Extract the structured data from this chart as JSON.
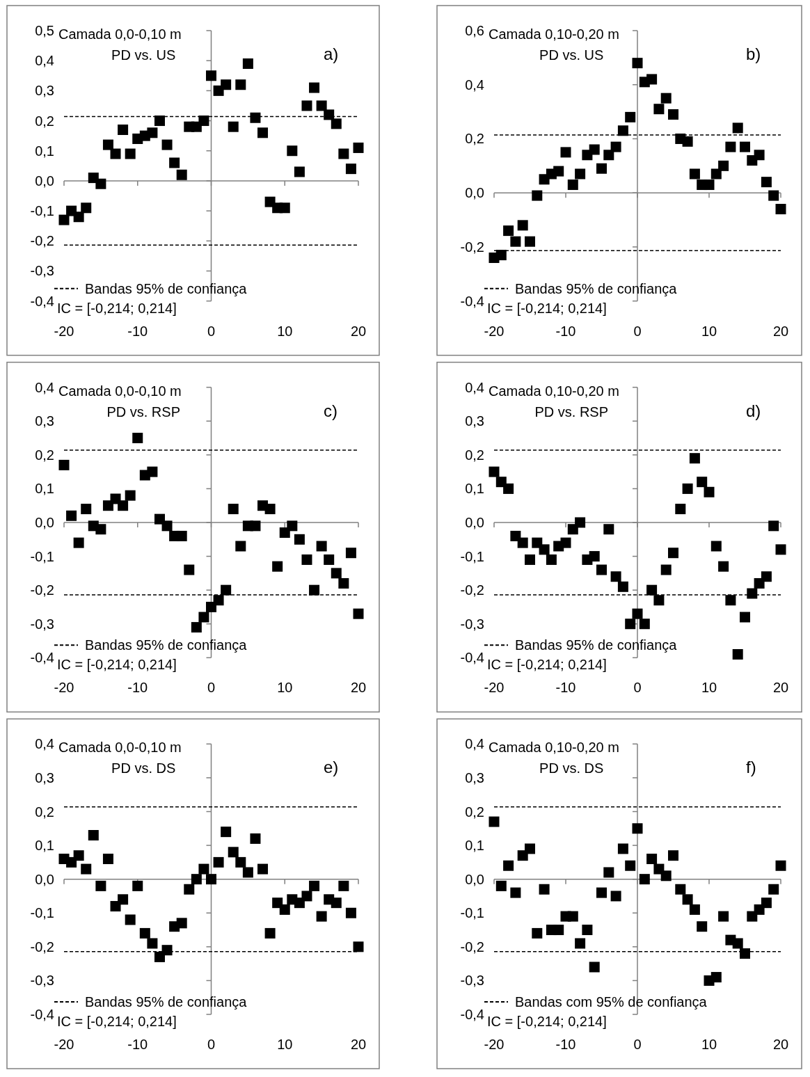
{
  "chart_data": [
    {
      "type": "scatter",
      "title": "Camada 0,0-0,10 m",
      "subtitle": "PD vs. US",
      "annotations": [
        "a)",
        "IC = [-0,214; 0,214]"
      ],
      "marker": "square",
      "xlim": [
        -20,
        20
      ],
      "xticks": [
        -20,
        -10,
        0,
        10,
        20
      ],
      "ylim": [
        -0.4,
        0.5
      ],
      "yticks": [
        {
          "value": -0.4,
          "label": "-0,4"
        },
        {
          "value": -0.3,
          "label": "-0,3"
        },
        {
          "value": -0.2,
          "label": "-0,2"
        },
        {
          "value": -0.1,
          "label": "-0,1"
        },
        {
          "value": 0,
          "label": "0,0"
        },
        {
          "value": 0.1,
          "label": "0,1"
        },
        {
          "value": 0.2,
          "label": "0,2"
        },
        {
          "value": 0.3,
          "label": "0,3"
        },
        {
          "value": 0.4,
          "label": "0,4"
        },
        {
          "value": 0.5,
          "label": "0,5"
        }
      ],
      "ref_lines": [
        {
          "axis": "y",
          "value": 0.214,
          "label": "Bandas  95% de confiança",
          "color": "#000000",
          "line_style": "dashed"
        },
        {
          "axis": "y",
          "value": -0.214,
          "label": null,
          "color": "#000000",
          "line_style": "dashed"
        }
      ],
      "x": [
        -20,
        -19,
        -18,
        -17,
        -16,
        -15,
        -14,
        -13,
        -12,
        -11,
        -10,
        -9,
        -8,
        -7,
        -6,
        -5,
        -4,
        -3,
        -2,
        -1,
        0,
        1,
        2,
        3,
        4,
        5,
        6,
        7,
        8,
        9,
        10,
        11,
        12,
        13,
        14,
        15,
        16,
        17,
        18,
        19,
        20
      ],
      "series": [
        {
          "color": "#000000",
          "values": [
            -0.13,
            -0.1,
            -0.12,
            -0.09,
            0.01,
            -0.01,
            0.12,
            0.09,
            0.17,
            0.09,
            0.14,
            0.15,
            0.16,
            0.2,
            0.12,
            0.06,
            0.02,
            0.18,
            0.18,
            0.2,
            0.35,
            0.3,
            0.32,
            0.18,
            0.32,
            0.39,
            0.21,
            0.16,
            -0.07,
            -0.09,
            -0.09,
            0.1,
            0.03,
            0.25,
            0.31,
            0.25,
            0.22,
            0.19,
            0.09,
            0.04,
            0.11
          ]
        }
      ]
    },
    {
      "type": "scatter",
      "title": "Camada 0,10-0,20 m",
      "subtitle": "PD vs. US",
      "annotations": [
        "b)",
        "IC = [-0,214; 0,214]"
      ],
      "marker": "square",
      "xlim": [
        -20,
        20
      ],
      "xticks": [
        -20,
        -10,
        0,
        10,
        20
      ],
      "ylim": [
        -0.4,
        0.6
      ],
      "yticks": [
        {
          "value": -0.4,
          "label": "-0,4"
        },
        {
          "value": -0.2,
          "label": "-0,2"
        },
        {
          "value": 0,
          "label": "0,0"
        },
        {
          "value": 0.2,
          "label": "0,2"
        },
        {
          "value": 0.4,
          "label": "0,4"
        },
        {
          "value": 0.6,
          "label": "0,6"
        }
      ],
      "ref_lines": [
        {
          "axis": "y",
          "value": 0.214,
          "label": "Bandas 95% de confiança",
          "color": "#000000",
          "line_style": "dashed"
        },
        {
          "axis": "y",
          "value": -0.214,
          "label": null,
          "color": "#000000",
          "line_style": "dashed"
        }
      ],
      "x": [
        -20,
        -19,
        -18,
        -17,
        -16,
        -15,
        -14,
        -13,
        -12,
        -11,
        -10,
        -9,
        -8,
        -7,
        -6,
        -5,
        -4,
        -3,
        -2,
        -1,
        0,
        1,
        2,
        3,
        4,
        5,
        6,
        7,
        8,
        9,
        10,
        11,
        12,
        13,
        14,
        15,
        16,
        17,
        18,
        19,
        20
      ],
      "series": [
        {
          "color": "#000000",
          "values": [
            -0.24,
            -0.23,
            -0.14,
            -0.18,
            -0.12,
            -0.18,
            -0.01,
            0.05,
            0.07,
            0.08,
            0.15,
            0.03,
            0.07,
            0.14,
            0.16,
            0.09,
            0.14,
            0.17,
            0.23,
            0.28,
            0.48,
            0.41,
            0.42,
            0.31,
            0.35,
            0.29,
            0.2,
            0.19,
            0.07,
            0.03,
            0.03,
            0.07,
            0.1,
            0.17,
            0.24,
            0.17,
            0.12,
            0.14,
            0.04,
            -0.01,
            -0.06
          ]
        }
      ]
    },
    {
      "type": "scatter",
      "title": "Camada 0,0-0,10 m",
      "subtitle": "PD vs. RSP",
      "annotations": [
        "c)",
        "IC = [-0,214; 0,214]"
      ],
      "marker": "square",
      "xlim": [
        -20,
        20
      ],
      "xticks": [
        -20,
        -10,
        0,
        10,
        20
      ],
      "ylim": [
        -0.4,
        0.4
      ],
      "yticks": [
        {
          "value": -0.4,
          "label": "-0,4"
        },
        {
          "value": -0.3,
          "label": "-0,3"
        },
        {
          "value": -0.2,
          "label": "-0,2"
        },
        {
          "value": -0.1,
          "label": "-0,1"
        },
        {
          "value": 0,
          "label": "0,0"
        },
        {
          "value": 0.1,
          "label": "0,1"
        },
        {
          "value": 0.2,
          "label": "0,2"
        },
        {
          "value": 0.3,
          "label": "0,3"
        },
        {
          "value": 0.4,
          "label": "0,4"
        }
      ],
      "ref_lines": [
        {
          "axis": "y",
          "value": 0.214,
          "label": "Bandas  95% de confiança",
          "color": "#000000",
          "line_style": "dashed"
        },
        {
          "axis": "y",
          "value": -0.214,
          "label": null,
          "color": "#000000",
          "line_style": "dashed"
        }
      ],
      "x": [
        -20,
        -19,
        -18,
        -17,
        -16,
        -15,
        -14,
        -13,
        -12,
        -11,
        -10,
        -9,
        -8,
        -7,
        -6,
        -5,
        -4,
        -3,
        -2,
        -1,
        0,
        1,
        2,
        3,
        4,
        5,
        6,
        7,
        8,
        9,
        10,
        11,
        12,
        13,
        14,
        15,
        16,
        17,
        18,
        19,
        20
      ],
      "series": [
        {
          "color": "#000000",
          "values": [
            0.17,
            0.02,
            -0.06,
            0.04,
            -0.01,
            -0.02,
            0.05,
            0.07,
            0.05,
            0.08,
            0.25,
            0.14,
            0.15,
            0.01,
            -0.01,
            -0.04,
            -0.04,
            -0.14,
            -0.31,
            -0.28,
            -0.25,
            -0.23,
            -0.2,
            0.04,
            -0.07,
            -0.01,
            -0.01,
            0.05,
            0.04,
            -0.13,
            -0.03,
            -0.01,
            -0.05,
            -0.11,
            -0.2,
            -0.07,
            -0.11,
            -0.15,
            -0.18,
            -0.09,
            -0.27
          ]
        }
      ]
    },
    {
      "type": "scatter",
      "title": "Camada 0,10-0,20 m",
      "subtitle": "PD vs. RSP",
      "annotations": [
        "d)",
        "IC = [-0,214; 0,214]"
      ],
      "marker": "square",
      "xlim": [
        -20,
        20
      ],
      "xticks": [
        -20,
        -10,
        0,
        10,
        20
      ],
      "ylim": [
        -0.4,
        0.4
      ],
      "yticks": [
        {
          "value": -0.4,
          "label": "-0,4"
        },
        {
          "value": -0.3,
          "label": "-0,3"
        },
        {
          "value": -0.2,
          "label": "-0,2"
        },
        {
          "value": -0.1,
          "label": "-0,1"
        },
        {
          "value": 0,
          "label": "0,0"
        },
        {
          "value": 0.1,
          "label": "0,1"
        },
        {
          "value": 0.2,
          "label": "0,2"
        },
        {
          "value": 0.3,
          "label": "0,3"
        },
        {
          "value": 0.4,
          "label": "0,4"
        }
      ],
      "ref_lines": [
        {
          "axis": "y",
          "value": 0.214,
          "label": "Bandas 95% de confiança",
          "color": "#000000",
          "line_style": "dashed"
        },
        {
          "axis": "y",
          "value": -0.214,
          "label": null,
          "color": "#000000",
          "line_style": "dashed"
        }
      ],
      "x": [
        -20,
        -19,
        -18,
        -17,
        -16,
        -15,
        -14,
        -13,
        -12,
        -11,
        -10,
        -9,
        -8,
        -7,
        -6,
        -5,
        -4,
        -3,
        -2,
        -1,
        0,
        1,
        2,
        3,
        4,
        5,
        6,
        7,
        8,
        9,
        10,
        11,
        12,
        13,
        14,
        15,
        16,
        17,
        18,
        19,
        20
      ],
      "series": [
        {
          "color": "#000000",
          "values": [
            0.15,
            0.12,
            0.1,
            -0.04,
            -0.06,
            -0.11,
            -0.06,
            -0.08,
            -0.11,
            -0.07,
            -0.06,
            -0.02,
            0.0,
            -0.11,
            -0.1,
            -0.14,
            -0.02,
            -0.16,
            -0.19,
            -0.3,
            -0.27,
            -0.3,
            -0.2,
            -0.23,
            -0.14,
            -0.09,
            0.04,
            0.1,
            0.19,
            0.12,
            0.09,
            -0.07,
            -0.13,
            -0.23,
            -0.39,
            -0.28,
            -0.21,
            -0.18,
            -0.16,
            -0.01,
            -0.08
          ]
        }
      ]
    },
    {
      "type": "scatter",
      "title": "Camada 0,0-0,10 m",
      "subtitle": "PD vs. DS",
      "annotations": [
        "e)",
        "IC = [-0,214; 0,214]"
      ],
      "marker": "square",
      "xlim": [
        -20,
        20
      ],
      "xticks": [
        -20,
        -10,
        0,
        10,
        20
      ],
      "ylim": [
        -0.4,
        0.4
      ],
      "yticks": [
        {
          "value": -0.4,
          "label": "-0,4"
        },
        {
          "value": -0.3,
          "label": "-0,3"
        },
        {
          "value": -0.2,
          "label": "-0,2"
        },
        {
          "value": -0.1,
          "label": "-0,1"
        },
        {
          "value": 0,
          "label": "0,0"
        },
        {
          "value": 0.1,
          "label": "0,1"
        },
        {
          "value": 0.2,
          "label": "0,2"
        },
        {
          "value": 0.3,
          "label": "0,3"
        },
        {
          "value": 0.4,
          "label": "0,4"
        }
      ],
      "ref_lines": [
        {
          "axis": "y",
          "value": 0.214,
          "label": "Bandas  95% de confiança",
          "color": "#000000",
          "line_style": "dashed"
        },
        {
          "axis": "y",
          "value": -0.214,
          "label": null,
          "color": "#000000",
          "line_style": "dashed"
        }
      ],
      "x": [
        -20,
        -19,
        -18,
        -17,
        -16,
        -15,
        -14,
        -13,
        -12,
        -11,
        -10,
        -9,
        -8,
        -7,
        -6,
        -5,
        -4,
        -3,
        -2,
        -1,
        0,
        1,
        2,
        3,
        4,
        5,
        6,
        7,
        8,
        9,
        10,
        11,
        12,
        13,
        14,
        15,
        16,
        17,
        18,
        19,
        20
      ],
      "series": [
        {
          "color": "#000000",
          "values": [
            0.06,
            0.05,
            0.07,
            0.03,
            0.13,
            -0.02,
            0.06,
            -0.08,
            -0.06,
            -0.12,
            -0.02,
            -0.16,
            -0.19,
            -0.23,
            -0.21,
            -0.14,
            -0.13,
            -0.03,
            0.0,
            0.03,
            0.0,
            0.05,
            0.14,
            0.08,
            0.05,
            0.02,
            0.12,
            0.03,
            -0.16,
            -0.07,
            -0.09,
            -0.06,
            -0.07,
            -0.05,
            -0.02,
            -0.11,
            -0.06,
            -0.07,
            -0.02,
            -0.1,
            -0.2
          ]
        }
      ]
    },
    {
      "type": "scatter",
      "title": "Camada 0,10-0,20 m",
      "subtitle": "PD vs. DS",
      "annotations": [
        "f)",
        "IC = [-0,214; 0,214]"
      ],
      "marker": "square",
      "xlim": [
        -20,
        20
      ],
      "xticks": [
        -20,
        -10,
        0,
        10,
        20
      ],
      "ylim": [
        -0.4,
        0.4
      ],
      "yticks": [
        {
          "value": -0.4,
          "label": "-0,4"
        },
        {
          "value": -0.3,
          "label": "-0,3"
        },
        {
          "value": -0.2,
          "label": "-0,2"
        },
        {
          "value": -0.1,
          "label": "-0,1"
        },
        {
          "value": 0,
          "label": "0,0"
        },
        {
          "value": 0.1,
          "label": "0,1"
        },
        {
          "value": 0.2,
          "label": "0,2"
        },
        {
          "value": 0.3,
          "label": "0,3"
        },
        {
          "value": 0.4,
          "label": "0,4"
        }
      ],
      "ref_lines": [
        {
          "axis": "y",
          "value": 0.214,
          "label": "Bandas com 95% de confiança",
          "color": "#000000",
          "line_style": "dashed"
        },
        {
          "axis": "y",
          "value": -0.214,
          "label": null,
          "color": "#000000",
          "line_style": "dashed"
        }
      ],
      "x": [
        -20,
        -19,
        -18,
        -17,
        -16,
        -15,
        -14,
        -13,
        -12,
        -11,
        -10,
        -9,
        -8,
        -7,
        -6,
        -5,
        -4,
        -3,
        -2,
        -1,
        0,
        1,
        2,
        3,
        4,
        5,
        6,
        7,
        8,
        9,
        10,
        11,
        12,
        13,
        14,
        15,
        16,
        17,
        18,
        19,
        20
      ],
      "series": [
        {
          "color": "#000000",
          "values": [
            0.17,
            -0.02,
            0.04,
            -0.04,
            0.07,
            0.09,
            -0.16,
            -0.03,
            -0.15,
            -0.15,
            -0.11,
            -0.11,
            -0.19,
            -0.15,
            -0.26,
            -0.04,
            0.02,
            -0.05,
            0.09,
            0.04,
            0.15,
            0.0,
            0.06,
            0.03,
            0.01,
            0.07,
            -0.03,
            -0.06,
            -0.09,
            -0.14,
            -0.3,
            -0.29,
            -0.11,
            -0.18,
            -0.19,
            -0.22,
            -0.11,
            -0.09,
            -0.07,
            -0.03,
            0.04
          ]
        }
      ]
    }
  ]
}
